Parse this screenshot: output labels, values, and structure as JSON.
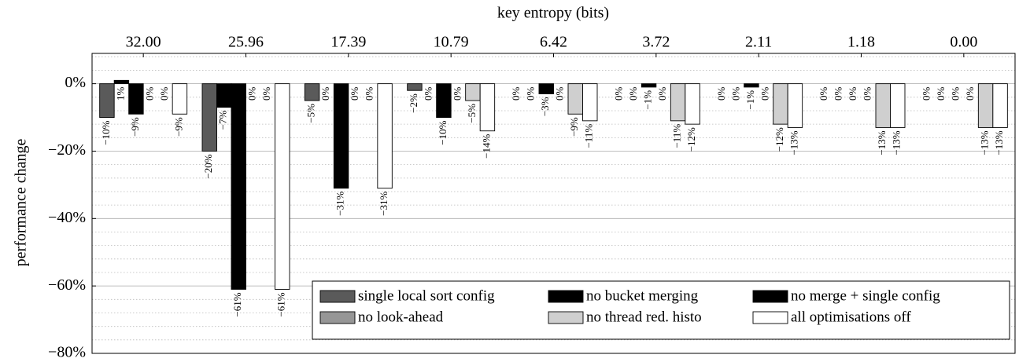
{
  "chart_data": {
    "type": "bar",
    "x_label": "key entropy (bits)",
    "y_label": "performance change",
    "categories": [
      "32.00",
      "25.96",
      "17.39",
      "10.79",
      "6.42",
      "3.72",
      "2.11",
      "1.18",
      "0.00"
    ],
    "ylim": [
      -80,
      9
    ],
    "yticks": [
      {
        "value": 0,
        "label": "0%"
      },
      {
        "value": -20,
        "label": "−20%"
      },
      {
        "value": -40,
        "label": "−40%"
      },
      {
        "value": -60,
        "label": "−60%"
      },
      {
        "value": -80,
        "label": "−80%"
      }
    ],
    "yticks_minor": [
      8,
      4,
      -4,
      -8,
      -12,
      -16,
      -24,
      -28,
      -32,
      -36,
      -44,
      -48,
      -52,
      -56,
      -64,
      -68,
      -72,
      -76
    ],
    "grid": true,
    "legend": "lower right",
    "series": [
      {
        "name": "single local sort config",
        "color": "#5a5a5a",
        "values": [
          -10,
          -20,
          -5,
          -2,
          0,
          0,
          0,
          0,
          0
        ],
        "value_labels": [
          "−10%",
          "−20%",
          "−5%",
          "−2%",
          "0%",
          "0%",
          "0%",
          "0%",
          "0%"
        ]
      },
      {
        "name": "no bucket merging",
        "color": "#ffffff",
        "pattern": "hatch",
        "values": [
          1,
          -7,
          0,
          0,
          0,
          0,
          0,
          0,
          0
        ],
        "value_labels": [
          "1%",
          "−7%",
          "0%",
          "0%",
          "0%",
          "0%",
          "0%",
          "0%",
          "0%"
        ]
      },
      {
        "name": "no merge + single config",
        "color": "#5a5a5a",
        "pattern": "hatch",
        "values": [
          -9,
          -61,
          -31,
          -10,
          -3,
          -1,
          -1,
          0,
          0
        ],
        "value_labels": [
          "−9%",
          "−61%",
          "−31%",
          "−10%",
          "−3%",
          "−1%",
          "−1%",
          "0%",
          "0%"
        ]
      },
      {
        "name": "no look-ahead",
        "color": "#969696",
        "values": [
          0,
          0,
          0,
          0,
          0,
          0,
          0,
          0,
          0
        ],
        "value_labels": [
          "0%",
          "0%",
          "0%",
          "0%",
          "0%",
          "0%",
          "0%",
          "0%",
          "0%"
        ]
      },
      {
        "name": "no thread red. histo",
        "color": "#cfcfcf",
        "values": [
          0,
          0,
          0,
          -5,
          -9,
          -11,
          -12,
          -13,
          -13
        ],
        "value_labels": [
          "0%",
          "0%",
          "0%",
          "−5%",
          "−9%",
          "−11%",
          "−12%",
          "−13%",
          "−13%"
        ]
      },
      {
        "name": "all optimisations off",
        "color": "#ffffff",
        "values": [
          -9,
          -61,
          -31,
          -14,
          -11,
          -12,
          -13,
          -13,
          -13
        ],
        "value_labels": [
          "−9%",
          "−61%",
          "−31%",
          "−14%",
          "−11%",
          "−12%",
          "−13%",
          "−13%",
          "−13%"
        ]
      }
    ]
  }
}
